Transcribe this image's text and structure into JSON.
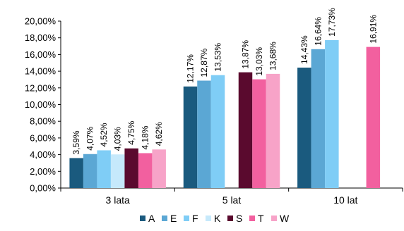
{
  "chart_data": {
    "type": "bar",
    "categories": [
      "3 lata",
      "5 lat",
      "10 lat"
    ],
    "series": [
      {
        "name": "A",
        "color": "#1a5a7e",
        "values": [
          3.59,
          12.17,
          14.43
        ],
        "labels": [
          "3,59%",
          "12,17%",
          "14,43%"
        ]
      },
      {
        "name": "E",
        "color": "#5ba7d4",
        "values": [
          4.07,
          12.87,
          16.64
        ],
        "labels": [
          "4,07%",
          "12,87%",
          "16,64%"
        ]
      },
      {
        "name": "F",
        "color": "#7fcdf6",
        "values": [
          4.52,
          13.53,
          17.73
        ],
        "labels": [
          "4,52%",
          "13,53%",
          "17,73%"
        ]
      },
      {
        "name": "K",
        "color": "#c6e9fb",
        "values": [
          4.03,
          null,
          null
        ],
        "labels": [
          "4,03%",
          null,
          null
        ]
      },
      {
        "name": "S",
        "color": "#5a0a2e",
        "values": [
          4.75,
          13.87,
          null
        ],
        "labels": [
          "4,75%",
          "13,87%",
          null
        ]
      },
      {
        "name": "T",
        "color": "#f2609f",
        "values": [
          4.18,
          13.03,
          16.91
        ],
        "labels": [
          "4,18%",
          "13,03%",
          "16,91%"
        ]
      },
      {
        "name": "W",
        "color": "#f7a3c8",
        "values": [
          4.62,
          13.68,
          null
        ],
        "labels": [
          "4,62%",
          "13,68%",
          null
        ]
      }
    ],
    "ylim": [
      0,
      20
    ],
    "ytick_values": [
      0,
      2,
      4,
      6,
      8,
      10,
      12,
      14,
      16,
      18,
      20
    ],
    "ytick_labels": [
      "0,00%",
      "2,00%",
      "4,00%",
      "6,00%",
      "8,00%",
      "10,00%",
      "12,00%",
      "14,00%",
      "16,00%",
      "18,00%",
      "20,00%"
    ],
    "grid": false,
    "legend_position": "bottom-right"
  }
}
